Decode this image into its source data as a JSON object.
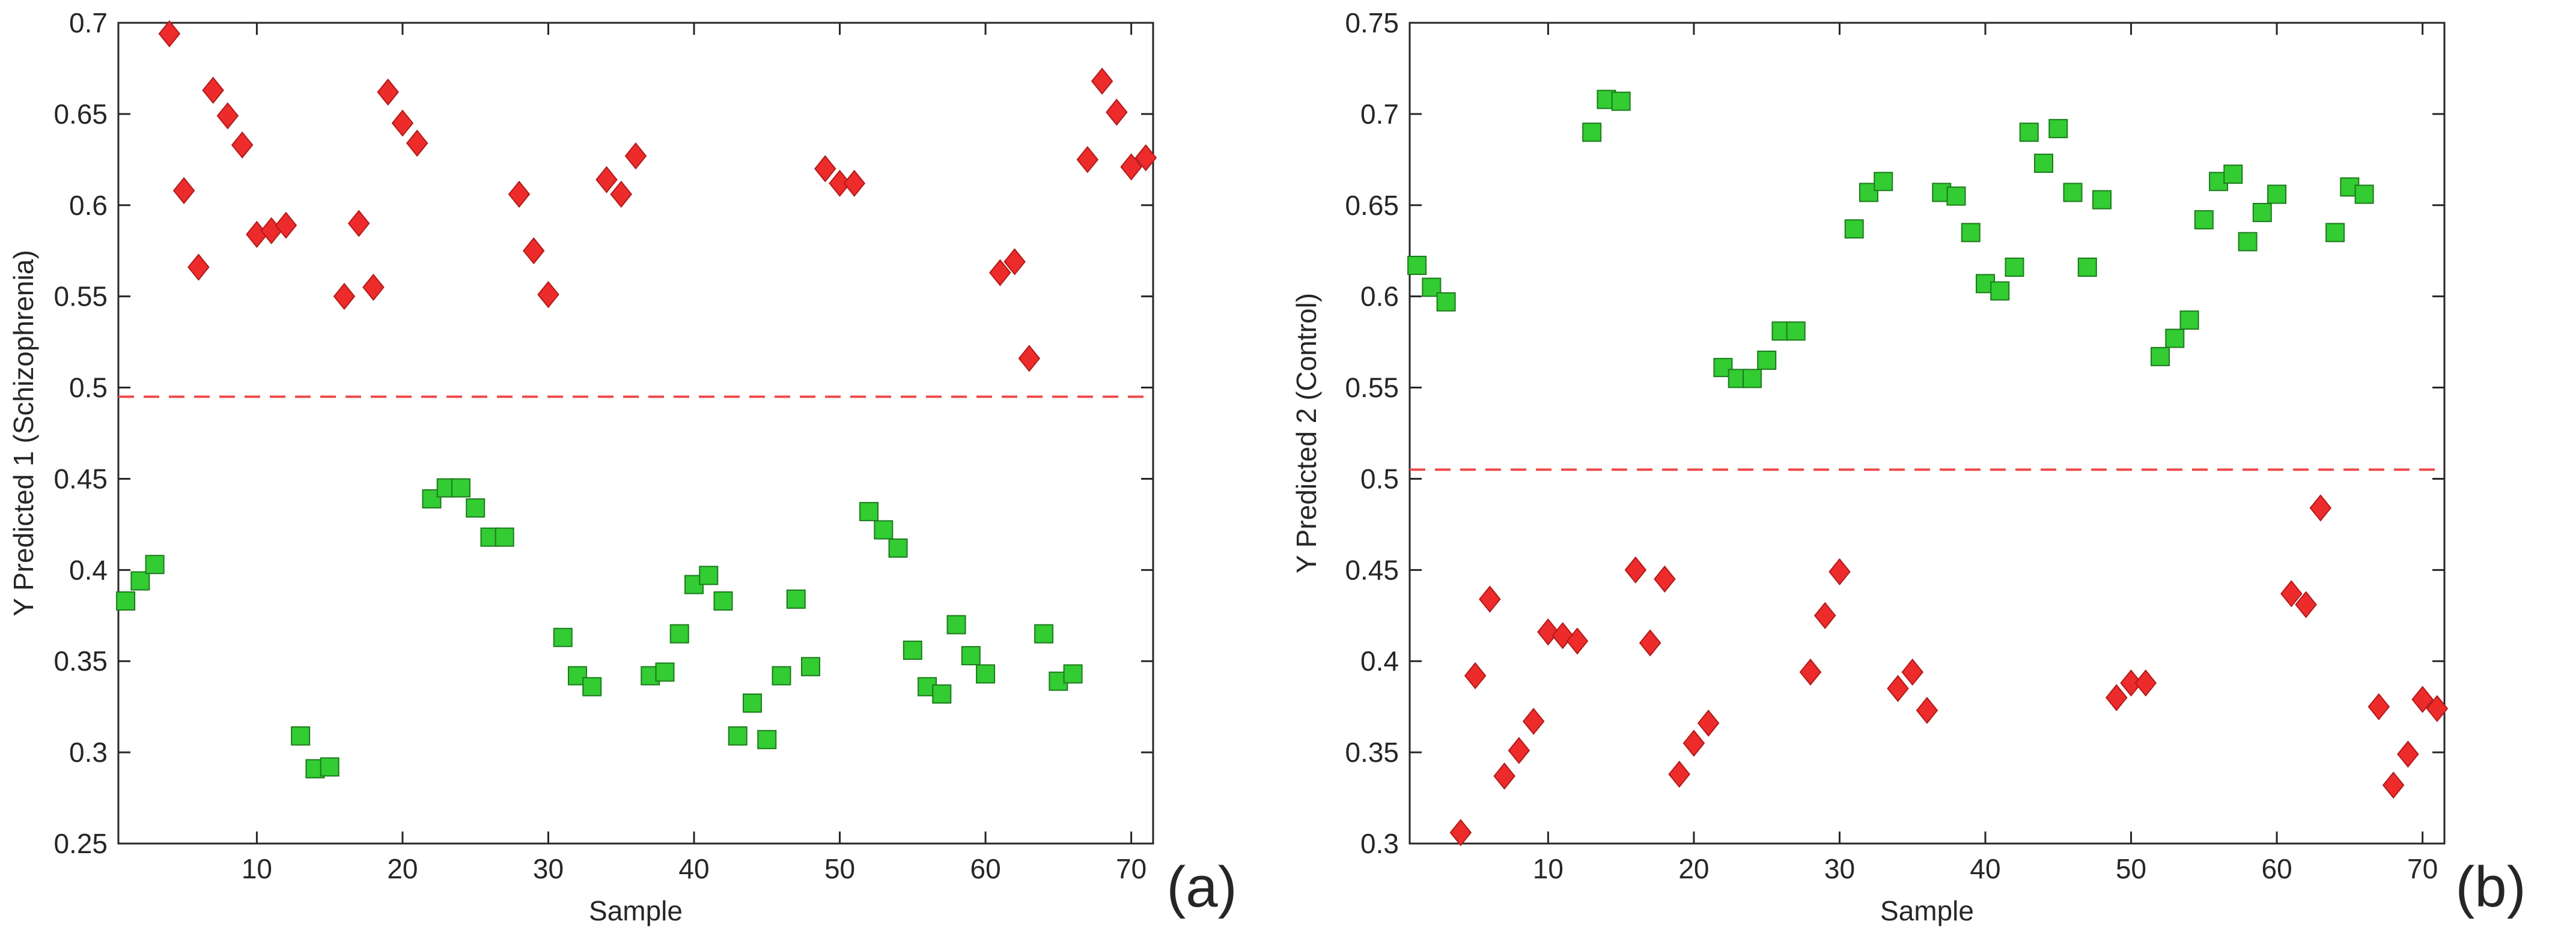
{
  "chart_data": [
    {
      "panel_label": "(a)",
      "type": "scatter",
      "xlabel": "Sample",
      "ylabel": "Y Predicted 1 (Schizophrenia)",
      "xlim": [
        0.5,
        71.5
      ],
      "ylim": [
        0.25,
        0.7
      ],
      "xticks": [
        10,
        20,
        30,
        40,
        50,
        60,
        70
      ],
      "yticks": [
        0.25,
        0.3,
        0.35,
        0.4,
        0.45,
        0.5,
        0.55,
        0.6,
        0.65,
        0.7
      ],
      "threshold": 0.495,
      "threshold_color": "#f04a4a",
      "series": [
        {
          "name": "Schizophrenia",
          "marker": "diamond",
          "color": "#ee2b2b",
          "edge": "#b11a1a",
          "x": [
            4,
            5,
            6,
            7,
            8,
            9,
            10,
            11,
            12,
            16,
            17,
            18,
            19,
            20,
            21,
            28,
            29,
            30,
            34,
            35,
            36,
            49,
            50,
            51,
            61,
            62,
            63,
            67,
            68,
            69,
            70,
            71
          ],
          "y": [
            0.694,
            0.608,
            0.566,
            0.663,
            0.649,
            0.633,
            0.584,
            0.586,
            0.589,
            0.55,
            0.59,
            0.555,
            0.662,
            0.645,
            0.634,
            0.606,
            0.575,
            0.551,
            0.614,
            0.606,
            0.627,
            0.62,
            0.612,
            0.612,
            0.563,
            0.569,
            0.516,
            0.625,
            0.668,
            0.651,
            0.621,
            0.626
          ]
        },
        {
          "name": "Control",
          "marker": "square",
          "color": "#33cc33",
          "edge": "#1c7a1c",
          "x": [
            1,
            2,
            3,
            13,
            14,
            15,
            22,
            23,
            24,
            25,
            26,
            27,
            31,
            32,
            33,
            37,
            38,
            39,
            40,
            41,
            42,
            43,
            44,
            45,
            46,
            47,
            48,
            52,
            53,
            54,
            55,
            56,
            57,
            58,
            59,
            60,
            64,
            65,
            66
          ],
          "y": [
            0.383,
            0.394,
            0.403,
            0.309,
            0.291,
            0.292,
            0.439,
            0.445,
            0.445,
            0.434,
            0.418,
            0.418,
            0.363,
            0.342,
            0.336,
            0.342,
            0.344,
            0.365,
            0.392,
            0.397,
            0.383,
            0.309,
            0.327,
            0.307,
            0.342,
            0.384,
            0.347,
            0.432,
            0.422,
            0.412,
            0.356,
            0.336,
            0.332,
            0.37,
            0.353,
            0.343,
            0.365,
            0.339,
            0.343
          ]
        }
      ]
    },
    {
      "panel_label": "(b)",
      "type": "scatter",
      "xlabel": "Sample",
      "ylabel": "Y Predicted 2 (Control)",
      "xlim": [
        0.5,
        71.5
      ],
      "ylim": [
        0.3,
        0.75
      ],
      "xticks": [
        10,
        20,
        30,
        40,
        50,
        60,
        70
      ],
      "yticks": [
        0.3,
        0.35,
        0.4,
        0.45,
        0.5,
        0.55,
        0.6,
        0.65,
        0.7,
        0.75
      ],
      "threshold": 0.505,
      "threshold_color": "#f04a4a",
      "series": [
        {
          "name": "Schizophrenia",
          "marker": "diamond",
          "color": "#ee2b2b",
          "edge": "#b11a1a",
          "x": [
            4,
            5,
            6,
            7,
            8,
            9,
            10,
            11,
            12,
            16,
            17,
            18,
            19,
            20,
            21,
            28,
            29,
            30,
            34,
            35,
            36,
            49,
            50,
            51,
            61,
            62,
            63,
            67,
            68,
            69,
            70,
            71
          ],
          "y": [
            0.306,
            0.392,
            0.434,
            0.337,
            0.351,
            0.367,
            0.416,
            0.414,
            0.411,
            0.45,
            0.41,
            0.445,
            0.338,
            0.355,
            0.366,
            0.394,
            0.425,
            0.449,
            0.385,
            0.394,
            0.373,
            0.38,
            0.388,
            0.388,
            0.437,
            0.431,
            0.484,
            0.375,
            0.332,
            0.349,
            0.379,
            0.374
          ]
        },
        {
          "name": "Control",
          "marker": "square",
          "color": "#33cc33",
          "edge": "#1c7a1c",
          "x": [
            1,
            2,
            3,
            13,
            14,
            15,
            22,
            23,
            24,
            25,
            26,
            27,
            31,
            32,
            33,
            37,
            38,
            39,
            40,
            41,
            42,
            43,
            44,
            45,
            46,
            47,
            48,
            52,
            53,
            54,
            55,
            56,
            57,
            58,
            59,
            60,
            64,
            65,
            66
          ],
          "y": [
            0.617,
            0.605,
            0.597,
            0.69,
            0.708,
            0.707,
            0.561,
            0.555,
            0.555,
            0.565,
            0.581,
            0.581,
            0.637,
            0.657,
            0.663,
            0.657,
            0.655,
            0.635,
            0.607,
            0.603,
            0.616,
            0.69,
            0.673,
            0.692,
            0.657,
            0.616,
            0.653,
            0.567,
            0.577,
            0.587,
            0.642,
            0.663,
            0.667,
            0.63,
            0.646,
            0.656,
            0.635,
            0.66,
            0.656
          ]
        }
      ]
    }
  ]
}
